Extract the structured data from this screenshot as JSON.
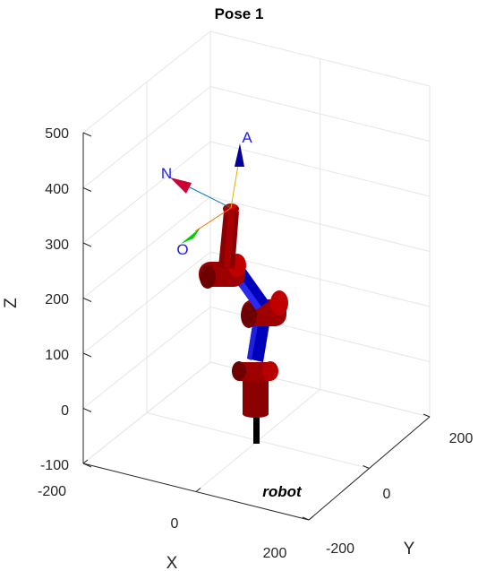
{
  "chart_data": {
    "type": "3d-robot-plot",
    "title": "Pose 1",
    "xlabel": "X",
    "ylabel": "Y",
    "zlabel": "Z",
    "xlim": [
      -200,
      200
    ],
    "ylim": [
      -200,
      200
    ],
    "zlim": [
      -100,
      500
    ],
    "xticks": [
      "-200",
      "0",
      "200"
    ],
    "yticks": [
      "-200",
      "0",
      "200"
    ],
    "zticks": [
      "-100",
      "0",
      "100",
      "200",
      "300",
      "400",
      "500"
    ],
    "grid": true,
    "robot": {
      "name": "robot",
      "colors": {
        "links": "#0000cc",
        "joints": "#b30000",
        "pedestal": "#000000"
      },
      "tool_frame": {
        "labels": [
          "N",
          "O",
          "A"
        ],
        "colors": {
          "N": "#cc0033",
          "O": "#00cc00",
          "A": "#000099"
        },
        "label_color": "#1a1aff"
      }
    }
  }
}
